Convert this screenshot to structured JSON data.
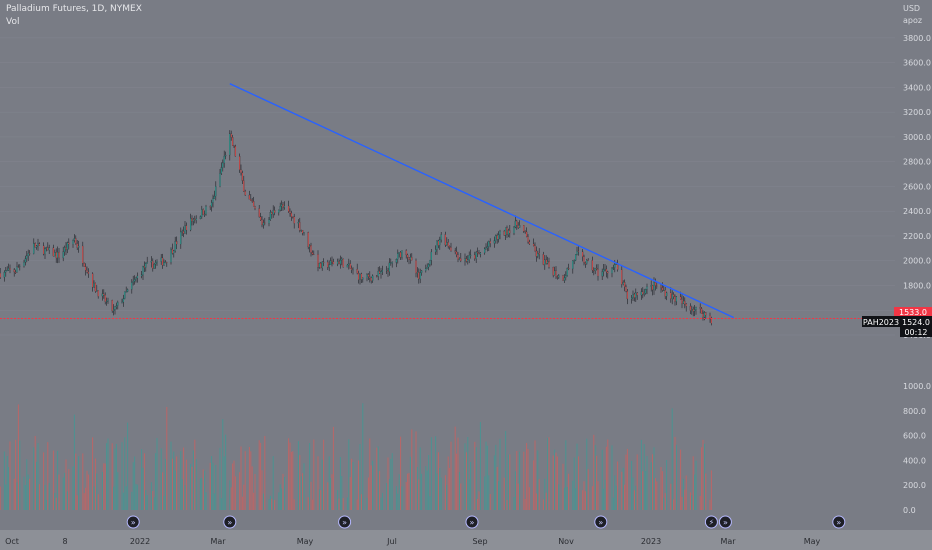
{
  "header": {
    "title": "Palladium Futures, 1D, NYMEX",
    "volume_label": "Vol"
  },
  "price_axis": {
    "currency": "USD",
    "sub_label": "apoz",
    "ticks": [
      "3800.0",
      "3600.0",
      "3400.0",
      "3200.0",
      "3000.0",
      "2800.0",
      "2600.0",
      "2400.0",
      "2200.0",
      "2000.0",
      "1800.0",
      "1600.0",
      "1400.0"
    ]
  },
  "volume_axis": {
    "ticks": [
      "1000.0",
      "800.0",
      "600.0",
      "400.0",
      "200.0",
      "0.0"
    ]
  },
  "time_axis": {
    "labels": [
      "Oct",
      "8",
      "2022",
      "Mar",
      "May",
      "Jul",
      "Sep",
      "Nov",
      "2023",
      "Mar",
      "May"
    ]
  },
  "price_tags": {
    "upper": "1533.0",
    "symbol": "PAH2023",
    "last": "1524.0",
    "countdown": "00:12"
  },
  "colors": {
    "background": "#797c85",
    "up": "#26a69a",
    "down": "#ef5350",
    "trendline": "#2962ff",
    "support": "#f23645"
  },
  "chart_data": {
    "type": "candlestick",
    "title": "Palladium Futures, 1D, NYMEX",
    "y_unit": "USD",
    "ylim": [
      1300,
      3900
    ],
    "volume_ylim": [
      0,
      1100
    ],
    "close_path": [
      {
        "date": "2021-09-24",
        "price": 1900
      },
      {
        "date": "2021-10-05",
        "price": 1920
      },
      {
        "date": "2021-10-18",
        "price": 2120
      },
      {
        "date": "2021-11-05",
        "price": 2040
      },
      {
        "date": "2021-11-16",
        "price": 2180
      },
      {
        "date": "2021-11-30",
        "price": 1790
      },
      {
        "date": "2021-12-14",
        "price": 1590
      },
      {
        "date": "2022-01-05",
        "price": 1950
      },
      {
        "date": "2022-01-20",
        "price": 2000
      },
      {
        "date": "2022-02-05",
        "price": 2300
      },
      {
        "date": "2022-02-22",
        "price": 2450
      },
      {
        "date": "2022-03-07",
        "price": 3000
      },
      {
        "date": "2022-03-10",
        "price": 2900
      },
      {
        "date": "2022-03-18",
        "price": 2550
      },
      {
        "date": "2022-03-30",
        "price": 2300
      },
      {
        "date": "2022-04-12",
        "price": 2450
      },
      {
        "date": "2022-04-25",
        "price": 2300
      },
      {
        "date": "2022-05-10",
        "price": 1950
      },
      {
        "date": "2022-05-25",
        "price": 2000
      },
      {
        "date": "2022-06-10",
        "price": 1850
      },
      {
        "date": "2022-06-25",
        "price": 1900
      },
      {
        "date": "2022-07-10",
        "price": 2100
      },
      {
        "date": "2022-07-20",
        "price": 1850
      },
      {
        "date": "2022-08-05",
        "price": 2200
      },
      {
        "date": "2022-08-20",
        "price": 2000
      },
      {
        "date": "2022-09-01",
        "price": 2050
      },
      {
        "date": "2022-09-15",
        "price": 2200
      },
      {
        "date": "2022-09-29",
        "price": 2300
      },
      {
        "date": "2022-10-12",
        "price": 2050
      },
      {
        "date": "2022-10-30",
        "price": 1850
      },
      {
        "date": "2022-11-10",
        "price": 2050
      },
      {
        "date": "2022-11-25",
        "price": 1900
      },
      {
        "date": "2022-12-08",
        "price": 1950
      },
      {
        "date": "2022-12-16",
        "price": 1700
      },
      {
        "date": "2023-01-05",
        "price": 1800
      },
      {
        "date": "2023-01-25",
        "price": 1650
      },
      {
        "date": "2023-02-08",
        "price": 1580
      },
      {
        "date": "2023-02-14",
        "price": 1524
      }
    ],
    "trendline": {
      "start": {
        "date": "2022-03-07",
        "price": 3430
      },
      "end": {
        "date": "2023-03-02",
        "price": 1540
      }
    },
    "support_line": {
      "price": 1533
    },
    "last_price": 1524,
    "volume_markers": [
      "2021-12-28",
      "2022-03-07",
      "2022-05-28",
      "2022-08-27",
      "2022-11-27",
      "2023-02-14",
      "2023-02-24",
      "2023-05-16"
    ]
  }
}
